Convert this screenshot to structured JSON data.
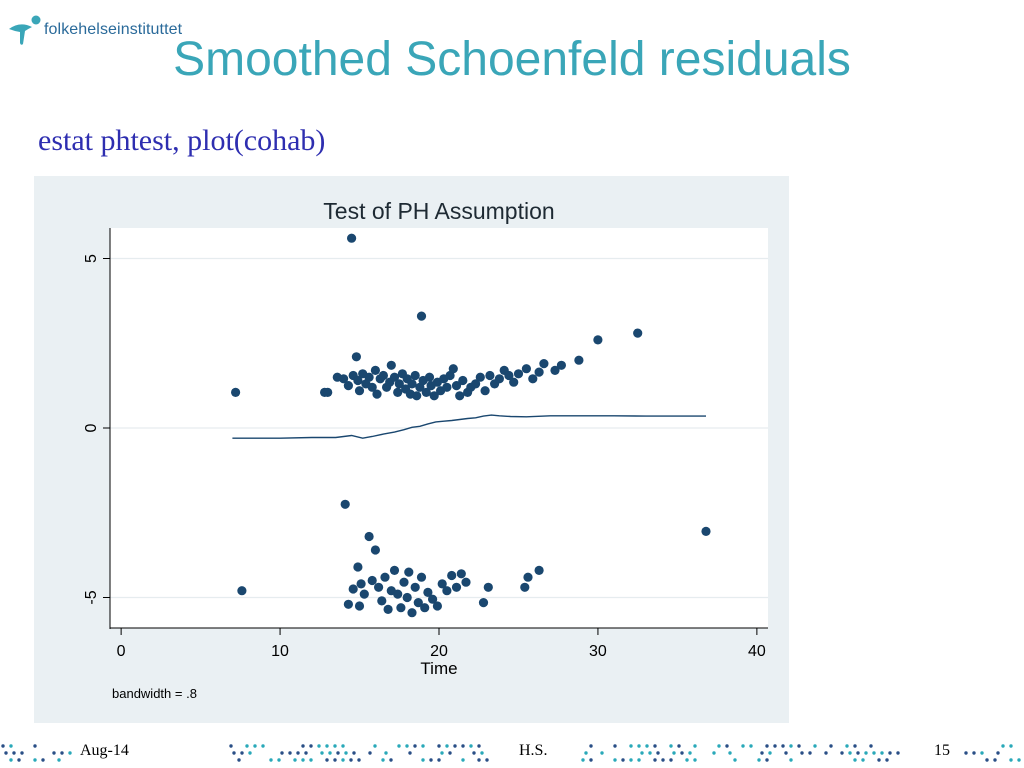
{
  "logo": {
    "text": "folkehelseinstituttet",
    "icon": "fhi-figure-icon"
  },
  "slide_title": "Smoothed Schoenfeld residuals",
  "command": "estat phtest, plot(cohab)",
  "colors": {
    "title": "#3aa6b8",
    "command": "#2e2eb0",
    "panel_bg": "#eaf0f3",
    "marker": "#1a476f",
    "dots_a": "#2aa9b9",
    "dots_b": "#2a4f86"
  },
  "chart_data": {
    "type": "scatter",
    "title": "Test of PH Assumption",
    "xlabel": "Time",
    "ylabel": "",
    "note": "bandwidth = .8",
    "xlim": [
      -0.7,
      40.7
    ],
    "ylim": [
      -5.9,
      5.9
    ],
    "xticks": [
      0,
      10,
      20,
      30,
      40
    ],
    "yticks": [
      -5,
      0,
      5
    ],
    "xtick_labels": [
      "0",
      "10",
      "20",
      "30",
      "40"
    ],
    "ytick_labels": [
      "-5",
      "0",
      "5"
    ],
    "grid": true,
    "series": [
      {
        "type": "scatter",
        "points": [
          [
            7.2,
            1.05
          ],
          [
            12.8,
            1.05
          ],
          [
            13.0,
            1.05
          ],
          [
            13.6,
            1.5
          ],
          [
            14.0,
            1.45
          ],
          [
            14.3,
            1.25
          ],
          [
            14.6,
            1.55
          ],
          [
            14.8,
            2.1
          ],
          [
            14.9,
            1.4
          ],
          [
            15.0,
            1.1
          ],
          [
            15.2,
            1.6
          ],
          [
            15.4,
            1.3
          ],
          [
            15.6,
            1.5
          ],
          [
            15.8,
            1.2
          ],
          [
            16.0,
            1.7
          ],
          [
            16.1,
            1.0
          ],
          [
            16.3,
            1.45
          ],
          [
            16.5,
            1.55
          ],
          [
            16.7,
            1.2
          ],
          [
            16.9,
            1.35
          ],
          [
            17.0,
            1.85
          ],
          [
            17.2,
            1.5
          ],
          [
            17.4,
            1.05
          ],
          [
            17.5,
            1.3
          ],
          [
            17.7,
            1.6
          ],
          [
            17.9,
            1.15
          ],
          [
            18.0,
            1.45
          ],
          [
            18.2,
            1.0
          ],
          [
            18.3,
            1.3
          ],
          [
            18.5,
            1.55
          ],
          [
            18.6,
            0.95
          ],
          [
            18.8,
            1.2
          ],
          [
            18.9,
            3.3
          ],
          [
            19.0,
            1.4
          ],
          [
            19.2,
            1.05
          ],
          [
            19.4,
            1.5
          ],
          [
            19.5,
            1.25
          ],
          [
            19.7,
            0.95
          ],
          [
            19.9,
            1.35
          ],
          [
            20.1,
            1.1
          ],
          [
            20.3,
            1.45
          ],
          [
            20.5,
            1.2
          ],
          [
            20.7,
            1.55
          ],
          [
            20.9,
            1.75
          ],
          [
            21.1,
            1.25
          ],
          [
            21.3,
            0.95
          ],
          [
            21.5,
            1.4
          ],
          [
            21.8,
            1.05
          ],
          [
            22.0,
            1.2
          ],
          [
            22.3,
            1.3
          ],
          [
            22.6,
            1.5
          ],
          [
            22.9,
            1.1
          ],
          [
            23.2,
            1.55
          ],
          [
            23.5,
            1.3
          ],
          [
            23.8,
            1.45
          ],
          [
            24.1,
            1.7
          ],
          [
            24.4,
            1.55
          ],
          [
            24.7,
            1.35
          ],
          [
            25.0,
            1.6
          ],
          [
            25.5,
            1.75
          ],
          [
            25.9,
            1.45
          ],
          [
            26.3,
            1.65
          ],
          [
            26.6,
            1.9
          ],
          [
            27.3,
            1.7
          ],
          [
            27.7,
            1.85
          ],
          [
            28.8,
            2.0
          ],
          [
            30.0,
            2.6
          ],
          [
            32.5,
            2.8
          ],
          [
            14.5,
            5.6
          ],
          [
            7.6,
            -4.8
          ],
          [
            14.1,
            -2.25
          ],
          [
            14.3,
            -5.2
          ],
          [
            14.6,
            -4.75
          ],
          [
            14.9,
            -4.1
          ],
          [
            15.0,
            -5.25
          ],
          [
            15.1,
            -4.6
          ],
          [
            15.3,
            -4.9
          ],
          [
            15.6,
            -3.2
          ],
          [
            15.8,
            -4.5
          ],
          [
            16.0,
            -3.6
          ],
          [
            16.2,
            -4.7
          ],
          [
            16.4,
            -5.1
          ],
          [
            16.6,
            -4.4
          ],
          [
            16.8,
            -5.35
          ],
          [
            17.0,
            -4.8
          ],
          [
            17.2,
            -4.2
          ],
          [
            17.4,
            -4.9
          ],
          [
            17.6,
            -5.3
          ],
          [
            17.8,
            -4.55
          ],
          [
            18.0,
            -5.0
          ],
          [
            18.1,
            -4.25
          ],
          [
            18.3,
            -5.45
          ],
          [
            18.5,
            -4.7
          ],
          [
            18.7,
            -5.15
          ],
          [
            18.9,
            -4.4
          ],
          [
            19.1,
            -5.3
          ],
          [
            19.3,
            -4.85
          ],
          [
            19.6,
            -5.05
          ],
          [
            19.9,
            -5.25
          ],
          [
            20.2,
            -4.6
          ],
          [
            20.5,
            -4.8
          ],
          [
            20.8,
            -4.35
          ],
          [
            21.1,
            -4.7
          ],
          [
            21.4,
            -4.3
          ],
          [
            21.7,
            -4.55
          ],
          [
            22.8,
            -5.15
          ],
          [
            23.1,
            -4.7
          ],
          [
            25.4,
            -4.7
          ],
          [
            25.6,
            -4.4
          ],
          [
            26.3,
            -4.2
          ],
          [
            36.8,
            -3.05
          ]
        ]
      },
      {
        "type": "line",
        "points": [
          [
            7.0,
            -0.3
          ],
          [
            10.0,
            -0.3
          ],
          [
            12.0,
            -0.28
          ],
          [
            13.5,
            -0.28
          ],
          [
            14.5,
            -0.22
          ],
          [
            15.2,
            -0.3
          ],
          [
            15.8,
            -0.25
          ],
          [
            16.5,
            -0.18
          ],
          [
            17.2,
            -0.12
          ],
          [
            17.8,
            -0.05
          ],
          [
            18.3,
            0.02
          ],
          [
            18.8,
            0.05
          ],
          [
            19.3,
            0.12
          ],
          [
            19.8,
            0.18
          ],
          [
            20.3,
            0.2
          ],
          [
            20.8,
            0.22
          ],
          [
            21.3,
            0.25
          ],
          [
            21.8,
            0.28
          ],
          [
            22.3,
            0.3
          ],
          [
            22.8,
            0.35
          ],
          [
            23.3,
            0.38
          ],
          [
            23.8,
            0.36
          ],
          [
            24.5,
            0.34
          ],
          [
            25.5,
            0.33
          ],
          [
            27.0,
            0.36
          ],
          [
            29.0,
            0.36
          ],
          [
            31.0,
            0.36
          ],
          [
            33.0,
            0.35
          ],
          [
            36.8,
            0.35
          ]
        ]
      }
    ]
  },
  "footer": {
    "date": "Aug-14",
    "author": "H.S.",
    "page": "15"
  }
}
